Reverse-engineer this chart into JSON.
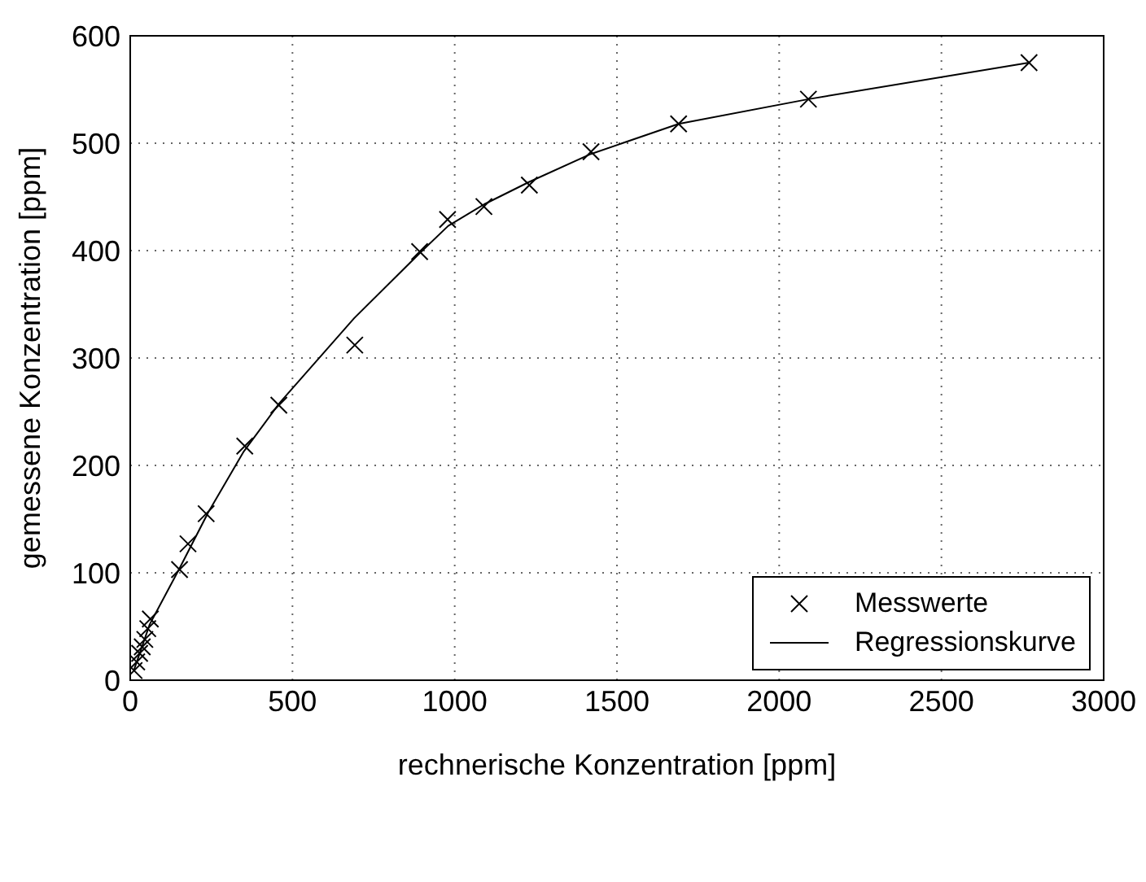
{
  "chart_data": {
    "type": "scatter",
    "xlabel": "rechnerische Konzentration [ppm]",
    "ylabel": "gemessene Konzentration [ppm]",
    "xlim": [
      0,
      3000
    ],
    "xticks": [
      0,
      500,
      1000,
      1500,
      2000,
      2500,
      3000
    ],
    "ylim": [
      0,
      600
    ],
    "yticks": [
      0,
      100,
      200,
      300,
      400,
      500,
      600
    ],
    "grid": true,
    "legend": "bottom right",
    "series": [
      {
        "name": "Messwerte",
        "marker": "cross",
        "color": "#000000",
        "x": [
          12,
          20,
          29,
          37,
          45,
          54,
          62,
          152,
          178,
          234,
          353,
          458,
          692,
          892,
          978,
          1090,
          1230,
          1420,
          1690,
          2090,
          2770
        ],
        "values": [
          9,
          17,
          25,
          31,
          38,
          48,
          57,
          103,
          127,
          155,
          218,
          256,
          312,
          399,
          429,
          441,
          461,
          492,
          518,
          541,
          575
        ]
      },
      {
        "name": "Regressionskurve",
        "type": "line",
        "marker": "none",
        "line_style": "solid",
        "color": "#000000",
        "x": [
          12,
          60,
          150,
          240,
          350,
          460,
          690,
          890,
          980,
          1090,
          1230,
          1420,
          1690,
          2090,
          2770
        ],
        "values": [
          10,
          52,
          103,
          156,
          213,
          258,
          337,
          397,
          423,
          443,
          464,
          490,
          518,
          541,
          575
        ]
      }
    ]
  }
}
